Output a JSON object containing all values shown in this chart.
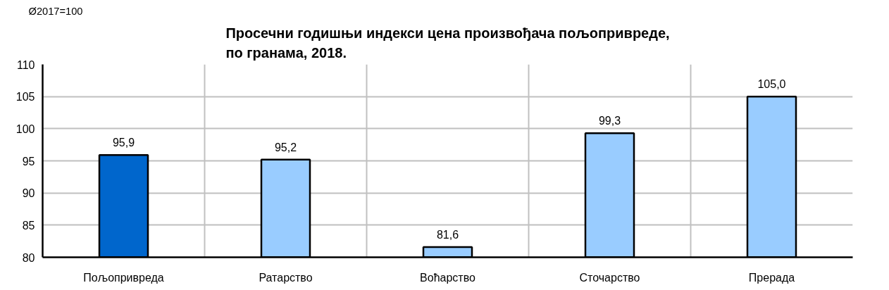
{
  "chart_data": {
    "type": "bar",
    "title": "Просечни годишњи индекси цена произвођача пољопривреде,\nпо гранама, 2018.",
    "ylabel": "Ø2017=100",
    "categories": [
      "Пољопривреда",
      "Ратарство",
      "Воћарство",
      "Сточарство",
      "Прерада"
    ],
    "values": [
      95.9,
      95.2,
      81.6,
      99.3,
      105.0
    ],
    "colors": [
      "#0066cc",
      "#99ccff",
      "#99ccff",
      "#99ccff",
      "#99ccff"
    ],
    "value_labels": [
      "95,9",
      "95,2",
      "81,6",
      "99,3",
      "105,0"
    ],
    "ylim": [
      80,
      110
    ],
    "yticks": [
      80,
      85,
      90,
      95,
      100,
      105,
      110
    ],
    "grid": true
  }
}
